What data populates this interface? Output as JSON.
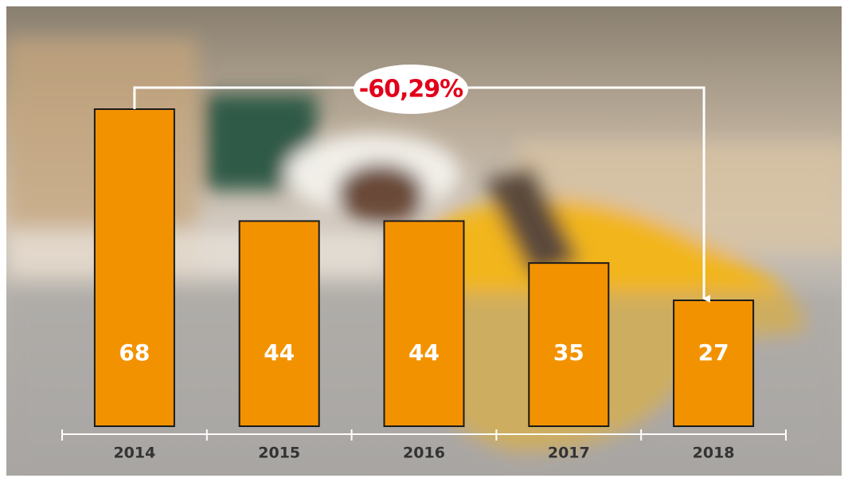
{
  "chart_data": {
    "type": "bar",
    "categories": [
      "2014",
      "2015",
      "2016",
      "2017",
      "2018"
    ],
    "values": [
      68,
      44,
      44,
      35,
      27
    ],
    "color": "#f39200",
    "annotation": "-60,29%"
  }
}
